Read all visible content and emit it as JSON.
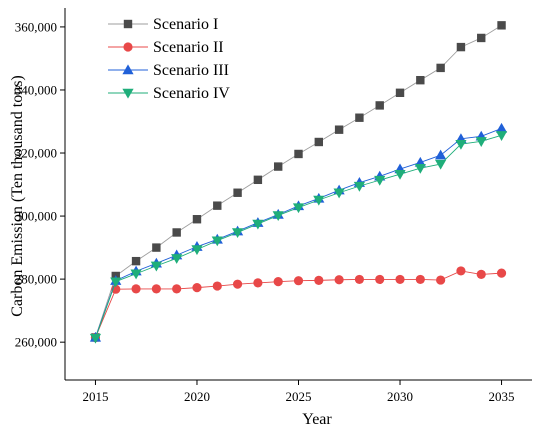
{
  "chart_data": {
    "type": "line",
    "title": "",
    "xlabel": "Year",
    "ylabel": "Carbon Emission (Ten thousand tons)",
    "xlim": [
      2013.5,
      2036.5
    ],
    "ylim": [
      248000,
      366000
    ],
    "x_ticks": [
      2015,
      2020,
      2025,
      2030,
      2035
    ],
    "y_ticks": [
      260000,
      280000,
      300000,
      320000,
      340000,
      360000
    ],
    "x_tick_labels": [
      "2015",
      "2020",
      "2025",
      "2030",
      "2035"
    ],
    "y_tick_labels": [
      "260,000",
      "280,000",
      "300,000",
      "320,000",
      "340,000",
      "360,000"
    ],
    "grid": false,
    "legend_position": "top-left",
    "x": [
      2015,
      2016,
      2017,
      2018,
      2019,
      2020,
      2021,
      2022,
      2023,
      2024,
      2025,
      2026,
      2027,
      2028,
      2029,
      2030,
      2031,
      2032,
      2033,
      2034,
      2035
    ],
    "series": [
      {
        "name": "Scenario I",
        "marker": "square",
        "color": "#4a4a4a",
        "line_color": "#9e9e9e",
        "values": [
          261500,
          281000,
          285700,
          290000,
          294800,
          299000,
          303300,
          307400,
          311500,
          315700,
          319700,
          323500,
          327400,
          331200,
          335100,
          339100,
          343100,
          347000,
          353600,
          356500,
          360500
        ]
      },
      {
        "name": "Scenario II",
        "marker": "circle",
        "color": "#e84848",
        "line_color": "#e84848",
        "values": [
          261500,
          276800,
          276900,
          276900,
          276900,
          277300,
          277800,
          278400,
          278800,
          279200,
          279500,
          279600,
          279800,
          279900,
          279900,
          279900,
          279900,
          279700,
          282600,
          281500,
          281900
        ]
      },
      {
        "name": "Scenario III",
        "marker": "triangle-up",
        "color": "#2060d8",
        "line_color": "#2060d8",
        "values": [
          261500,
          279500,
          282500,
          285000,
          287600,
          290300,
          292600,
          295200,
          297900,
          300500,
          303200,
          305600,
          308200,
          310600,
          312600,
          314900,
          317000,
          319300,
          324500,
          325300,
          327800
        ]
      },
      {
        "name": "Scenario IV",
        "marker": "triangle-down",
        "color": "#1fae7a",
        "line_color": "#1fae7a",
        "values": [
          261300,
          279200,
          281700,
          284200,
          286600,
          289400,
          292200,
          294800,
          297500,
          300200,
          302700,
          305100,
          307400,
          309500,
          311400,
          313300,
          315200,
          316500,
          322800,
          323700,
          325600
        ]
      }
    ]
  }
}
